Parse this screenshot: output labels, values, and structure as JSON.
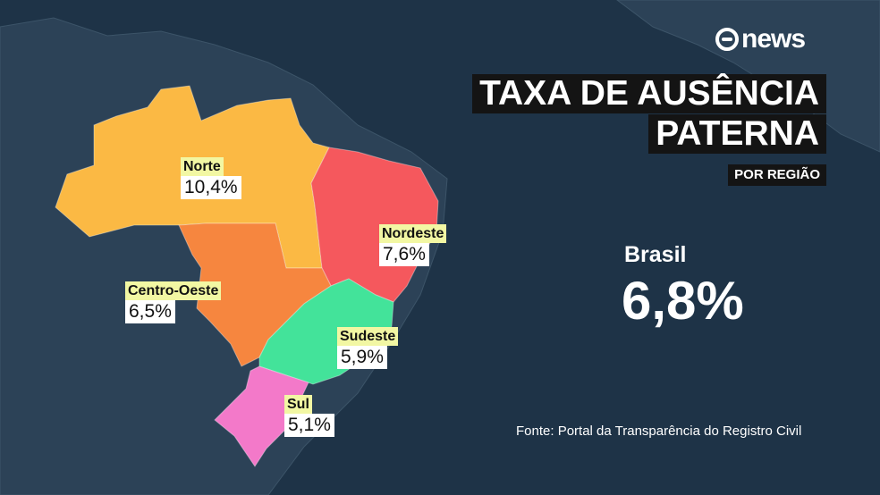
{
  "brand": {
    "logo_text": "news",
    "logo_icon": "globo-icon"
  },
  "title": {
    "line1": "TAXA DE AUSÊNCIA",
    "line2": "PATERNA"
  },
  "subtitle": "POR REGIÃO",
  "national": {
    "label": "Brasil",
    "value": "6,8%"
  },
  "source": "Fonte: Portal da Transparência do Registro Civil",
  "colors": {
    "background": "#1e3347",
    "land": "#2c4257",
    "norte": "#fbb944",
    "nordeste": "#f5585d",
    "centro_oeste": "#f6863f",
    "sudeste": "#43e39a",
    "sul": "#f379c9",
    "label_name_bg": "#f2f7a3",
    "label_value_bg": "#ffffff"
  },
  "regions": [
    {
      "id": "norte",
      "name": "Norte",
      "value": "10,4%"
    },
    {
      "id": "nordeste",
      "name": "Nordeste",
      "value": "7,6%"
    },
    {
      "id": "centro-oeste",
      "name": "Centro-Oeste",
      "value": "6,5%"
    },
    {
      "id": "sudeste",
      "name": "Sudeste",
      "value": "5,9%"
    },
    {
      "id": "sul",
      "name": "Sul",
      "value": "5,1%"
    }
  ]
}
